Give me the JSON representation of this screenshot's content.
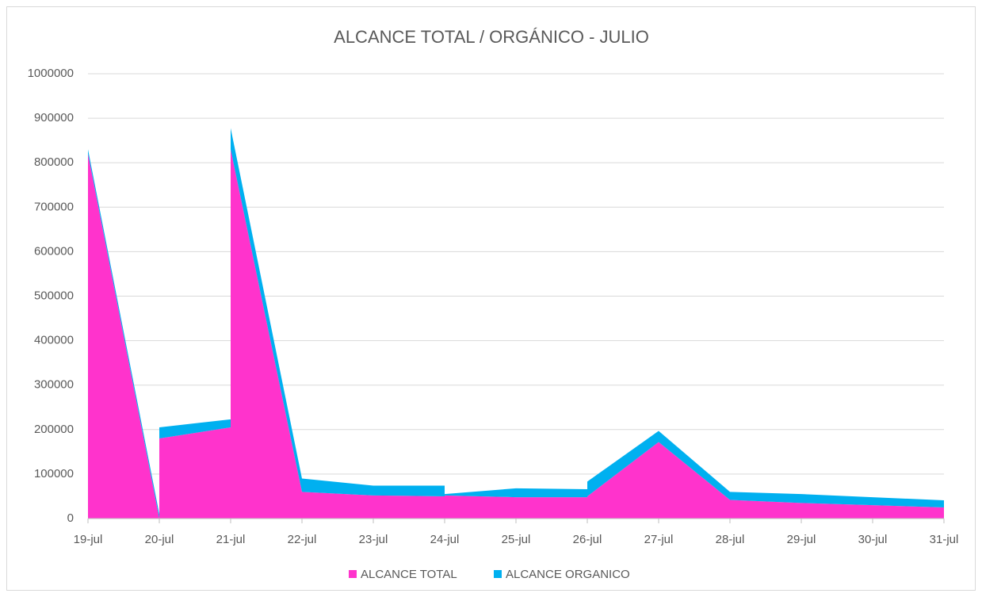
{
  "chart_data": {
    "type": "area",
    "stacked": true,
    "title": "ALCANCE TOTAL / ORGÁNICO - JULIO",
    "categories": [
      "19-jul",
      "20-jul",
      "21-jul",
      "22-jul",
      "23-jul",
      "24-jul",
      "25-jul",
      "26-jul",
      "27-jul",
      "28-jul",
      "29-jul",
      "30-jul",
      "31-jul"
    ],
    "x": [
      "19-jul",
      "20-jul",
      "20-jul",
      "21-jul",
      "21-jul",
      "22-jul",
      "23-jul",
      "24-jul",
      "24-jul",
      "25-jul",
      "26-jul",
      "26-jul",
      "27-jul",
      "28-jul",
      "29-jul",
      "30-jul",
      "31-jul"
    ],
    "series": [
      {
        "name": "ALCANCE TOTAL",
        "color": "#ff33cc",
        "values": [
          820000,
          0,
          180000,
          205000,
          830000,
          60000,
          52000,
          50000,
          52000,
          48000,
          48000,
          50000,
          172000,
          42000,
          35000,
          30000,
          25000
        ]
      },
      {
        "name": "ALCANCE ORGANICO",
        "color": "#00b0f0",
        "values": [
          10000,
          10000,
          25000,
          18000,
          48000,
          30000,
          22000,
          24000,
          3000,
          20000,
          18000,
          33000,
          25000,
          18000,
          20000,
          18000,
          16000
        ]
      }
    ],
    "ylim": [
      0,
      1000000
    ],
    "yticks": [
      0,
      100000,
      200000,
      300000,
      400000,
      500000,
      600000,
      700000,
      800000,
      900000,
      1000000
    ],
    "grid": true,
    "legend": "bottom"
  }
}
